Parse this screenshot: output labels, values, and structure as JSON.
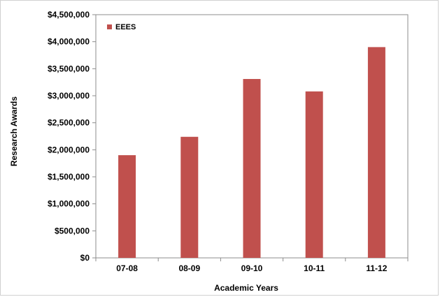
{
  "chart_data": {
    "type": "bar",
    "title": "",
    "xlabel": "Academic Years",
    "ylabel": "Research Awards",
    "categories": [
      "07-08",
      "08-09",
      "09-10",
      "10-11",
      "11-12"
    ],
    "series": [
      {
        "name": "EEES",
        "values": [
          1900000,
          2240000,
          3310000,
          3080000,
          3900000
        ]
      }
    ],
    "ylim": [
      0,
      4500000
    ],
    "yticks": [
      0,
      500000,
      1000000,
      1500000,
      2000000,
      2500000,
      3000000,
      3500000,
      4000000,
      4500000
    ],
    "ytick_labels": [
      "$0",
      "$500,000",
      "$1,000,000",
      "$1,500,000",
      "$2,000,000",
      "$2,500,000",
      "$3,000,000",
      "$3,500,000",
      "$4,000,000",
      "$4,500,000"
    ],
    "grid": false,
    "legend_position": "top-left",
    "bar_color": "#C0504D"
  }
}
